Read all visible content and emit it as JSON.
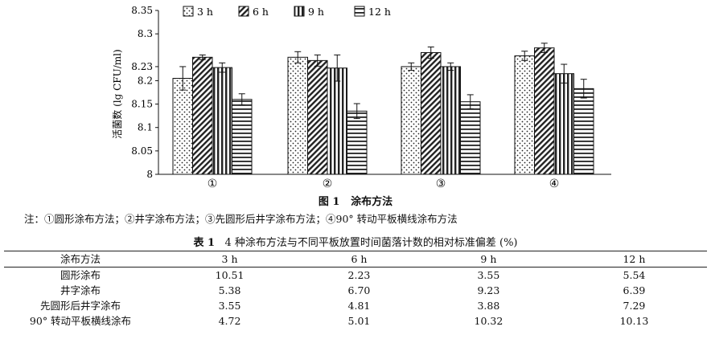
{
  "chart_data": {
    "type": "bar",
    "ylabel": "活菌数 (lg CFU/ml)",
    "xlabel": "",
    "ylim": [
      8,
      8.35
    ],
    "yticks": [
      "8",
      "8.05",
      "8.1",
      "8.15",
      "8.2",
      "8.23",
      "8.3",
      "8.35"
    ],
    "categories": [
      "①",
      "②",
      "③",
      "④"
    ],
    "legend_position": "top",
    "series": [
      {
        "name": "3 h",
        "pattern": "dots",
        "values": [
          8.205,
          8.25,
          8.23,
          8.253
        ],
        "errors": [
          0.025,
          0.012,
          0.008,
          0.01
        ]
      },
      {
        "name": "6 h",
        "pattern": "diagonal",
        "values": [
          8.25,
          8.243,
          8.26,
          8.27
        ],
        "errors": [
          0.005,
          0.012,
          0.012,
          0.01
        ]
      },
      {
        "name": "9 h",
        "pattern": "vertical",
        "values": [
          8.228,
          8.227,
          8.23,
          8.215
        ],
        "errors": [
          0.01,
          0.028,
          0.008,
          0.02
        ]
      },
      {
        "name": "12 h",
        "pattern": "horizontal",
        "values": [
          8.16,
          8.135,
          8.155,
          8.183
        ],
        "errors": [
          0.012,
          0.016,
          0.015,
          0.02
        ]
      }
    ]
  },
  "figure_caption": {
    "label": "图 1",
    "text": "涂布方法"
  },
  "note": "注：①圆形涂布方法；②井字涂布方法；③先圆形后井字涂布方法；④90° 转动平板横线涂布方法",
  "table": {
    "caption_label": "表 1",
    "caption_text": "4 种涂布方法与不同平板放置时间菌落计数的相对标准偏差 (%)",
    "headers": [
      "涂布方法",
      "3 h",
      "6 h",
      "9 h",
      "12 h"
    ],
    "rows": [
      [
        "圆形涂布",
        "10.51",
        "2.23",
        "3.55",
        "5.54"
      ],
      [
        "井字涂布",
        "5.38",
        "6.70",
        "9.23",
        "6.39"
      ],
      [
        "先圆形后井字涂布",
        "3.55",
        "4.81",
        "3.88",
        "7.29"
      ],
      [
        "90° 转动平板横线涂布",
        "4.72",
        "5.01",
        "10.32",
        "10.13"
      ]
    ]
  }
}
